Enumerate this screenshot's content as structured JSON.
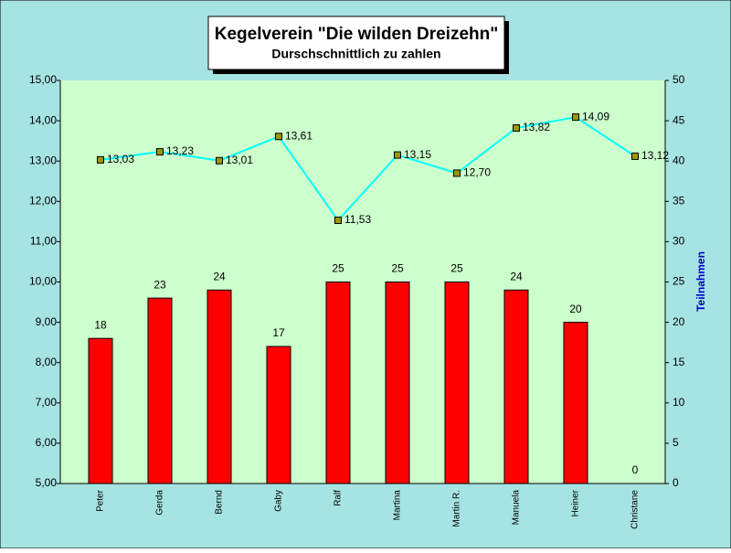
{
  "chart_data": {
    "type": "bar-line",
    "title": "Kegelverein \"Die wilden Dreizehn\"",
    "subtitle": "Durschschnittlich zu zahlen",
    "y2_label": "Teilnahmen",
    "categories": [
      "Peter",
      "Gerda",
      "Bernd",
      "Gaby",
      "Ralf",
      "Martina",
      "Martin R.",
      "Manuela",
      "Heiner",
      "Christane"
    ],
    "series": [
      {
        "type": "bar",
        "axis": "y2",
        "color": "#ff0000",
        "values": [
          18,
          23,
          24,
          17,
          25,
          25,
          25,
          24,
          20,
          0
        ]
      },
      {
        "type": "line",
        "axis": "y",
        "color": "#00ffff",
        "values": [
          13.03,
          13.23,
          13.01,
          13.61,
          11.53,
          13.15,
          12.7,
          13.82,
          14.09,
          13.12
        ],
        "value_labels": [
          "13,03",
          "13,23",
          "13,01",
          "13,61",
          "11,53",
          "13,15",
          "12,70",
          "13,82",
          "14,09",
          "13,12"
        ]
      }
    ],
    "ylim": [
      5,
      15
    ],
    "yticks": [
      {
        "value": 5,
        "label": "5,00"
      },
      {
        "value": 6,
        "label": "6,00"
      },
      {
        "value": 7,
        "label": "7,00"
      },
      {
        "value": 8,
        "label": "8,00"
      },
      {
        "value": 9,
        "label": "9,00"
      },
      {
        "value": 10,
        "label": "10,00"
      },
      {
        "value": 11,
        "label": "11,00"
      },
      {
        "value": 12,
        "label": "12,00"
      },
      {
        "value": 13,
        "label": "13,00"
      },
      {
        "value": 14,
        "label": "14,00"
      },
      {
        "value": 15,
        "label": "15,00"
      }
    ],
    "y2lim": [
      0,
      50
    ],
    "y2ticks": [
      0,
      5,
      10,
      15,
      20,
      25,
      30,
      35,
      40,
      45,
      50
    ]
  }
}
